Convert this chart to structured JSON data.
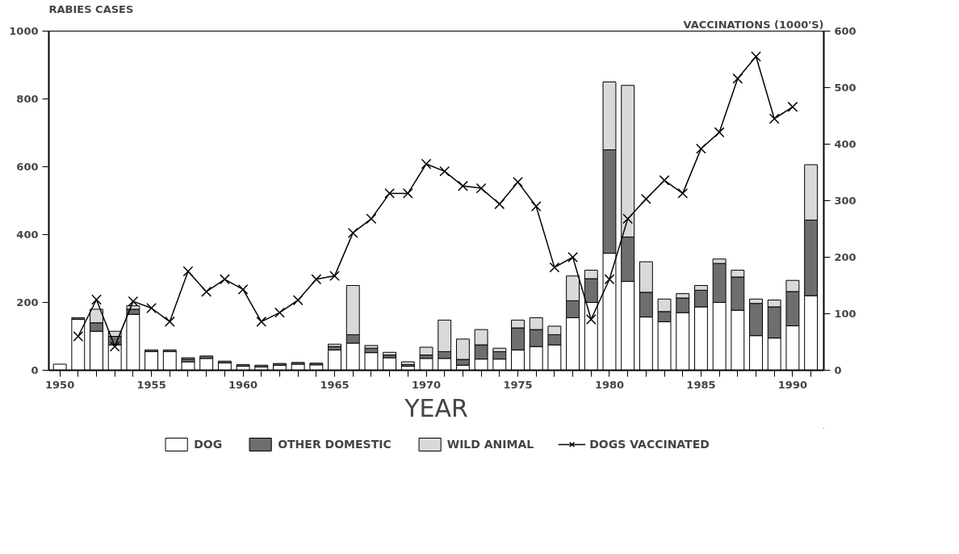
{
  "chart_data": {
    "type": "bar",
    "stacked": true,
    "ylabel": "RABIES CASES",
    "y2label": "VACCINATIONS (1000'S)",
    "xlabel": "YEAR",
    "x": [
      1950,
      1951,
      1952,
      1953,
      1954,
      1955,
      1956,
      1957,
      1958,
      1959,
      1960,
      1961,
      1962,
      1963,
      1964,
      1965,
      1966,
      1967,
      1968,
      1969,
      1970,
      1971,
      1972,
      1973,
      1974,
      1975,
      1976,
      1977,
      1978,
      1979,
      1980,
      1981,
      1982,
      1983,
      1984,
      1985,
      1986,
      1987,
      1988,
      1989,
      1990,
      1991
    ],
    "series": [
      {
        "name": "DOG",
        "color": "#ffffff",
        "values": [
          18,
          150,
          115,
          75,
          165,
          55,
          55,
          25,
          35,
          22,
          12,
          10,
          15,
          18,
          16,
          60,
          80,
          52,
          37,
          12,
          35,
          35,
          15,
          33,
          33,
          60,
          70,
          75,
          155,
          200,
          345,
          262,
          157,
          143,
          170,
          187,
          200,
          177,
          102,
          95,
          131,
          220
        ]
      },
      {
        "name": "OTHER DOMESTIC",
        "color": "#6e6e6e",
        "values": [
          0,
          5,
          25,
          25,
          15,
          5,
          5,
          8,
          7,
          5,
          5,
          5,
          5,
          5,
          5,
          10,
          25,
          13,
          8,
          5,
          10,
          20,
          17,
          42,
          22,
          65,
          50,
          30,
          50,
          70,
          305,
          131,
          73,
          30,
          43,
          49,
          115,
          98,
          95,
          92,
          101,
          223
        ]
      },
      {
        "name": "WILD ANIMAL",
        "color": "#d9d9d9",
        "values": [
          0,
          0,
          40,
          15,
          10,
          0,
          0,
          4,
          0,
          0,
          0,
          0,
          0,
          0,
          0,
          7,
          145,
          8,
          8,
          8,
          23,
          93,
          60,
          45,
          10,
          23,
          35,
          25,
          73,
          25,
          200,
          447,
          90,
          37,
          13,
          14,
          13,
          20,
          13,
          20,
          33,
          163
        ]
      },
      {
        "name": "DOGS VACCINATED",
        "type": "line",
        "axis": "y2",
        "marker": "cross",
        "color": "#000000",
        "x": [
          1951,
          1952,
          1953,
          1954,
          1955,
          1956,
          1957,
          1958,
          1959,
          1960,
          1961,
          1962,
          1963,
          1964,
          1965,
          1966,
          1967,
          1968,
          1969,
          1970,
          1971,
          1972,
          1973,
          1974,
          1975,
          1976,
          1977,
          1978,
          1979,
          1980,
          1981,
          1982,
          1983,
          1984,
          1985,
          1986,
          1987,
          1988,
          1989,
          1990
        ],
        "values": [
          60,
          125,
          42,
          122,
          110,
          86,
          175,
          139,
          161,
          143,
          86,
          102,
          124,
          161,
          167,
          243,
          268,
          313,
          313,
          365,
          352,
          326,
          322,
          294,
          333,
          290,
          182,
          200,
          90,
          161,
          268,
          303,
          336,
          313,
          392,
          421,
          516,
          555,
          445,
          466
        ]
      }
    ],
    "xlim": [
      1949.4,
      1991.7
    ],
    "xticks": [
      1950,
      {
        "value": 1951,
        "label": null
      },
      {
        "value": 1952,
        "label": null
      },
      {
        "value": 1953,
        "label": null
      },
      {
        "value": 1954,
        "label": null
      },
      1955,
      {
        "value": 1956,
        "label": null
      },
      {
        "value": 1957,
        "label": null
      },
      {
        "value": 1958,
        "label": null
      },
      {
        "value": 1959,
        "label": null
      },
      1960,
      {
        "value": 1961,
        "label": null
      },
      {
        "value": 1962,
        "label": null
      },
      {
        "value": 1963,
        "label": null
      },
      {
        "value": 1964,
        "label": null
      },
      1965,
      {
        "value": 1966,
        "label": null
      },
      {
        "value": 1967,
        "label": null
      },
      {
        "value": 1968,
        "label": null
      },
      {
        "value": 1969,
        "label": null
      },
      1970,
      {
        "value": 1971,
        "label": null
      },
      {
        "value": 1972,
        "label": null
      },
      {
        "value": 1973,
        "label": null
      },
      {
        "value": 1974,
        "label": null
      },
      1975,
      {
        "value": 1976,
        "label": null
      },
      {
        "value": 1977,
        "label": null
      },
      {
        "value": 1978,
        "label": null
      },
      {
        "value": 1979,
        "label": null
      },
      1980,
      {
        "value": 1981,
        "label": null
      },
      {
        "value": 1982,
        "label": null
      },
      {
        "value": 1983,
        "label": null
      },
      {
        "value": 1984,
        "label": null
      },
      1985,
      {
        "value": 1986,
        "label": null
      },
      {
        "value": 1987,
        "label": null
      },
      {
        "value": 1988,
        "label": null
      },
      {
        "value": 1989,
        "label": null
      },
      1990,
      {
        "value": 1991,
        "label": null
      }
    ],
    "ylim": [
      0,
      1000
    ],
    "yticks": [
      0,
      200,
      400,
      600,
      800,
      1000
    ],
    "y2lim": [
      0,
      600
    ],
    "y2ticks": [
      0,
      100,
      200,
      300,
      400,
      500,
      600
    ],
    "grid": false,
    "legend": "bottom"
  }
}
